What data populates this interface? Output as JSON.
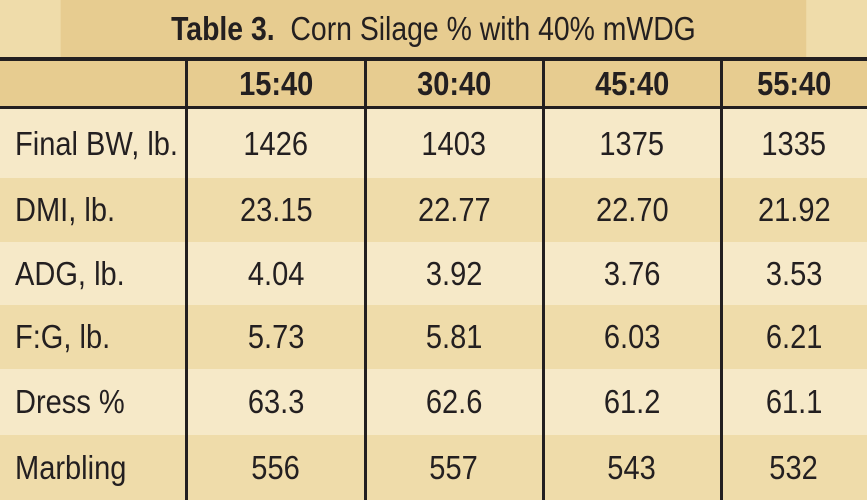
{
  "table": {
    "title_bold": "Table 3.",
    "title_rest": "Corn Silage % with 40% mWDG",
    "columns": [
      "",
      "15:40",
      "30:40",
      "45:40",
      "55:40"
    ],
    "rows": [
      {
        "label": "Final BW, lb.",
        "values": [
          "1426",
          "1403",
          "1375",
          "1335"
        ]
      },
      {
        "label": "DMI, lb.",
        "values": [
          "23.15",
          "22.77",
          "22.70",
          "21.92"
        ]
      },
      {
        "label": "ADG, lb.",
        "values": [
          "4.04",
          "3.92",
          "3.76",
          "3.53"
        ]
      },
      {
        "label": "F:G, lb.",
        "values": [
          "5.73",
          "5.81",
          "6.03",
          "6.21"
        ]
      },
      {
        "label": "Dress %",
        "values": [
          "63.3",
          "62.6",
          "61.2",
          "61.1"
        ]
      },
      {
        "label": "Marbling",
        "values": [
          "556",
          "557",
          "543",
          "532"
        ]
      }
    ]
  }
}
